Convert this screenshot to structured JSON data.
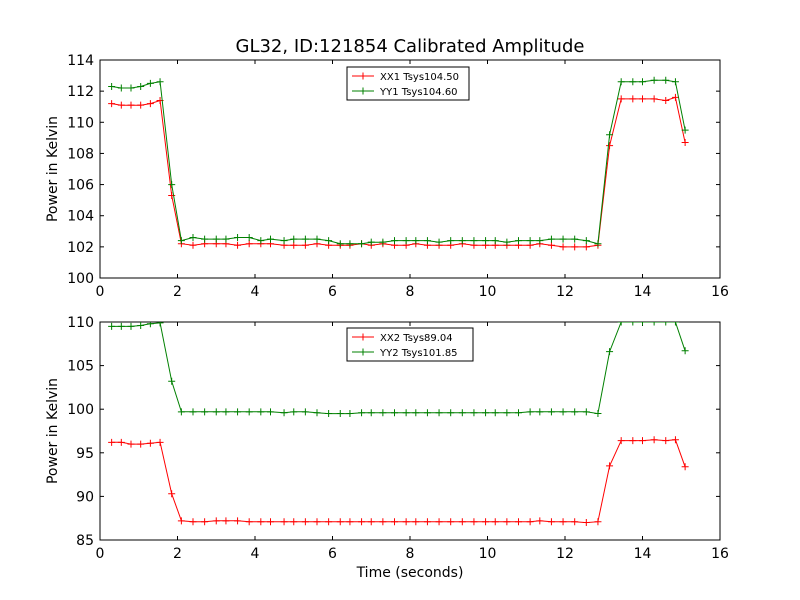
{
  "chart_data": [
    {
      "type": "line",
      "title": "GL32, ID:121854 Calibrated Amplitude",
      "xlabel": "",
      "ylabel": "Power in Kelvin",
      "xlim": [
        0,
        16
      ],
      "ylim": [
        100,
        114
      ],
      "xticks": [
        "0",
        "2",
        "4",
        "6",
        "8",
        "10",
        "12",
        "14",
        "16"
      ],
      "yticks": [
        "100",
        "102",
        "104",
        "106",
        "108",
        "110",
        "112",
        "114"
      ],
      "legend": "top-center",
      "grid": false,
      "x": [
        0.3,
        0.55,
        0.8,
        1.05,
        1.3,
        1.55,
        1.85,
        2.1,
        2.4,
        2.7,
        3.0,
        3.25,
        3.55,
        3.85,
        4.15,
        4.4,
        4.75,
        5.0,
        5.3,
        5.6,
        5.9,
        6.2,
        6.45,
        6.75,
        7.0,
        7.3,
        7.6,
        7.9,
        8.15,
        8.45,
        8.75,
        9.05,
        9.35,
        9.65,
        9.95,
        10.2,
        10.5,
        10.8,
        11.1,
        11.35,
        11.65,
        11.95,
        12.25,
        12.55,
        12.85,
        13.15,
        13.45,
        13.75,
        14.0,
        14.3,
        14.6,
        14.85,
        15.1
      ],
      "series": [
        {
          "name": "XX1 Tsys104.50",
          "color": "#ff0000",
          "values": [
            111.2,
            111.1,
            111.1,
            111.1,
            111.2,
            111.4,
            105.3,
            102.2,
            102.1,
            102.2,
            102.2,
            102.2,
            102.1,
            102.2,
            102.2,
            102.2,
            102.1,
            102.1,
            102.1,
            102.2,
            102.1,
            102.1,
            102.1,
            102.2,
            102.1,
            102.2,
            102.1,
            102.1,
            102.2,
            102.1,
            102.1,
            102.1,
            102.2,
            102.1,
            102.1,
            102.1,
            102.1,
            102.1,
            102.1,
            102.2,
            102.1,
            102.0,
            102.0,
            102.0,
            102.1,
            108.5,
            111.5,
            111.5,
            111.5,
            111.5,
            111.4,
            111.6,
            108.7
          ]
        },
        {
          "name": "YY1 Tsys104.60",
          "color": "#008000",
          "values": [
            112.3,
            112.2,
            112.2,
            112.3,
            112.5,
            112.6,
            106.0,
            102.4,
            102.6,
            102.5,
            102.5,
            102.5,
            102.6,
            102.6,
            102.4,
            102.5,
            102.4,
            102.5,
            102.5,
            102.5,
            102.4,
            102.2,
            102.2,
            102.2,
            102.3,
            102.3,
            102.4,
            102.4,
            102.4,
            102.4,
            102.3,
            102.4,
            102.4,
            102.4,
            102.4,
            102.4,
            102.3,
            102.4,
            102.4,
            102.4,
            102.5,
            102.5,
            102.5,
            102.4,
            102.2,
            109.2,
            112.6,
            112.6,
            112.6,
            112.7,
            112.7,
            112.6,
            109.5
          ]
        }
      ]
    },
    {
      "type": "line",
      "title": "",
      "xlabel": "Time (seconds)",
      "ylabel": "Power in Kelvin",
      "xlim": [
        0,
        16
      ],
      "ylim": [
        85,
        110
      ],
      "xticks": [
        "0",
        "2",
        "4",
        "6",
        "8",
        "10",
        "12",
        "14",
        "16"
      ],
      "yticks": [
        "85",
        "90",
        "95",
        "100",
        "105",
        "110"
      ],
      "legend": "top-center",
      "grid": false,
      "x": [
        0.3,
        0.55,
        0.8,
        1.05,
        1.3,
        1.55,
        1.85,
        2.1,
        2.4,
        2.7,
        3.0,
        3.25,
        3.55,
        3.85,
        4.15,
        4.4,
        4.75,
        5.0,
        5.3,
        5.6,
        5.9,
        6.2,
        6.45,
        6.75,
        7.0,
        7.3,
        7.6,
        7.9,
        8.15,
        8.45,
        8.75,
        9.05,
        9.35,
        9.65,
        9.95,
        10.2,
        10.5,
        10.8,
        11.1,
        11.35,
        11.65,
        11.95,
        12.25,
        12.55,
        12.85,
        13.15,
        13.45,
        13.75,
        14.0,
        14.3,
        14.6,
        14.85,
        15.1
      ],
      "series": [
        {
          "name": "XX2 Tsys89.04",
          "color": "#ff0000",
          "values": [
            96.2,
            96.2,
            96.0,
            96.0,
            96.1,
            96.2,
            90.3,
            87.2,
            87.1,
            87.1,
            87.2,
            87.2,
            87.2,
            87.1,
            87.1,
            87.1,
            87.1,
            87.1,
            87.1,
            87.1,
            87.1,
            87.1,
            87.1,
            87.1,
            87.1,
            87.1,
            87.1,
            87.1,
            87.1,
            87.1,
            87.1,
            87.1,
            87.1,
            87.1,
            87.1,
            87.1,
            87.1,
            87.1,
            87.1,
            87.2,
            87.1,
            87.1,
            87.1,
            87.0,
            87.1,
            93.5,
            96.4,
            96.4,
            96.4,
            96.5,
            96.4,
            96.5,
            93.4
          ]
        },
        {
          "name": "YY2 Tsys101.85",
          "color": "#008000",
          "values": [
            109.5,
            109.5,
            109.5,
            109.6,
            109.8,
            109.9,
            103.2,
            99.7,
            99.7,
            99.7,
            99.7,
            99.7,
            99.7,
            99.7,
            99.7,
            99.7,
            99.6,
            99.7,
            99.7,
            99.6,
            99.5,
            99.5,
            99.5,
            99.6,
            99.6,
            99.6,
            99.6,
            99.6,
            99.6,
            99.6,
            99.6,
            99.6,
            99.6,
            99.6,
            99.6,
            99.6,
            99.6,
            99.6,
            99.7,
            99.7,
            99.7,
            99.7,
            99.7,
            99.7,
            99.5,
            106.6,
            110.0,
            110.0,
            110.0,
            110.0,
            110.0,
            110.0,
            106.7
          ]
        }
      ]
    }
  ]
}
